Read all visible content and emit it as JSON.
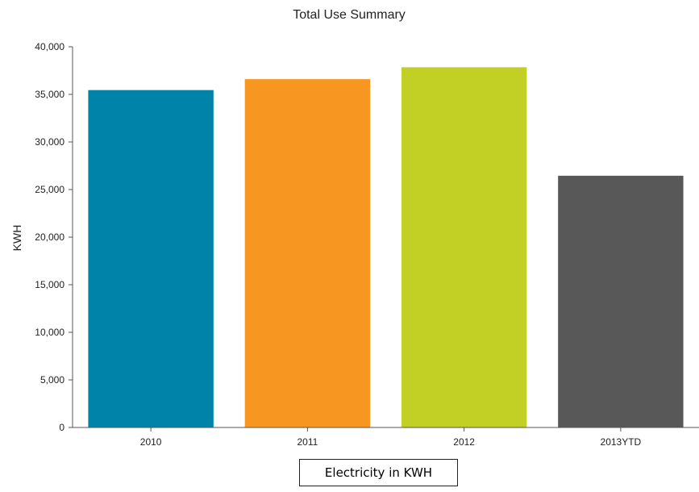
{
  "chart_data": {
    "type": "bar",
    "title": "Total Use Summary",
    "xlabel": "",
    "ylabel": "KWH",
    "categories": [
      "2010",
      "2011",
      "2012",
      "2013YTD"
    ],
    "values": [
      35450,
      36600,
      37850,
      26450
    ],
    "colors": [
      "#0083a8",
      "#f79620",
      "#c2cf24",
      "#585858"
    ],
    "ylim": [
      0,
      40000
    ],
    "yticks": [
      0,
      5000,
      10000,
      15000,
      20000,
      25000,
      30000,
      35000,
      40000
    ],
    "ytick_labels": [
      "0",
      "5,000",
      "10,000",
      "15,000",
      "20,000",
      "25,000",
      "30,000",
      "35,000",
      "40,000"
    ],
    "grid": false,
    "legend": false
  },
  "caption": "Electricity in KWH"
}
